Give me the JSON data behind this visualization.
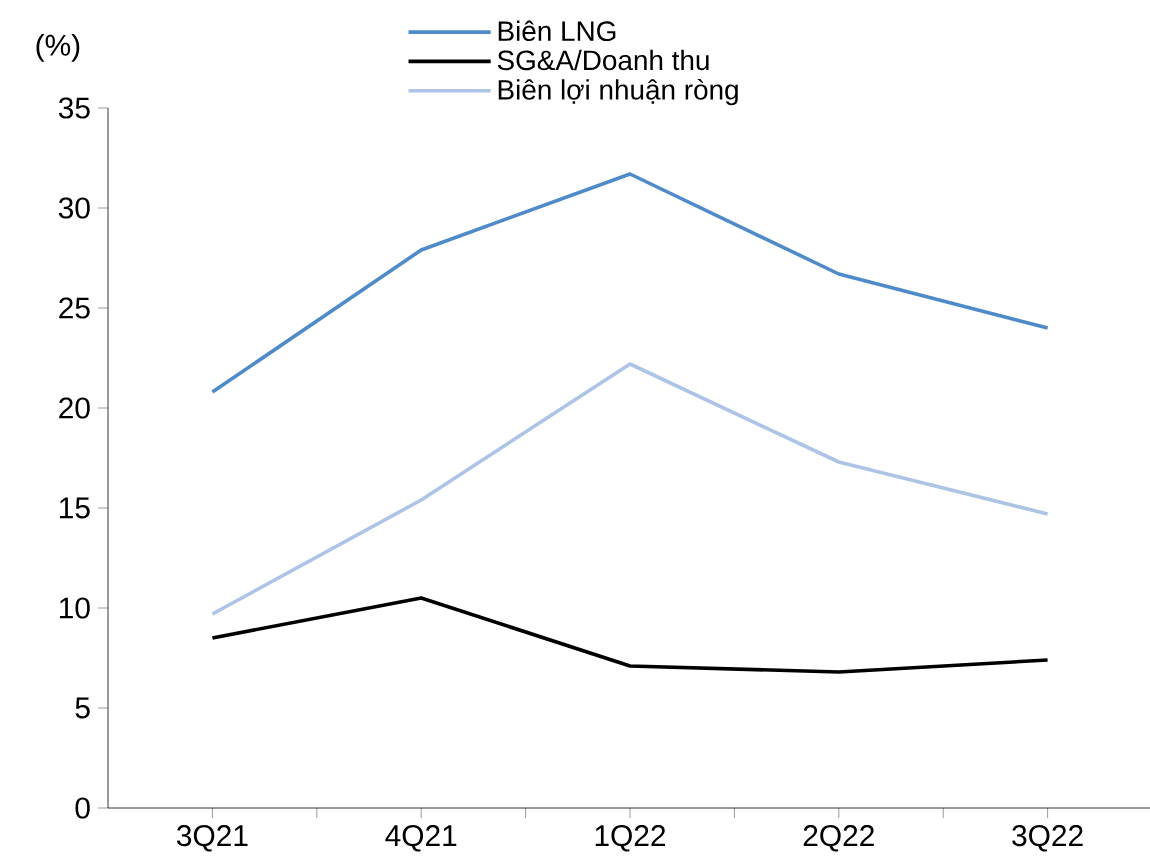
{
  "chart_data": {
    "type": "line",
    "ylabel": "(%)",
    "categories": [
      "3Q21",
      "4Q21",
      "1Q22",
      "2Q22",
      "3Q22"
    ],
    "series": [
      {
        "name": "Biên LNG",
        "color": "#4f8ac9",
        "values": [
          20.8,
          27.9,
          31.7,
          26.7,
          24.0
        ]
      },
      {
        "name": "SG&A/Doanh thu",
        "color": "#000000",
        "values": [
          8.5,
          10.5,
          7.1,
          6.8,
          7.4
        ]
      },
      {
        "name": "Biên lợi nhuận ròng",
        "color": "#adc4e6",
        "values": [
          9.7,
          15.4,
          22.2,
          17.3,
          14.7
        ]
      }
    ],
    "ylim": [
      0,
      35
    ],
    "yticks": [
      0,
      5,
      10,
      15,
      20,
      25,
      30,
      35
    ],
    "grid": false,
    "legend": "top",
    "marker": "none",
    "line_style": "solid"
  }
}
